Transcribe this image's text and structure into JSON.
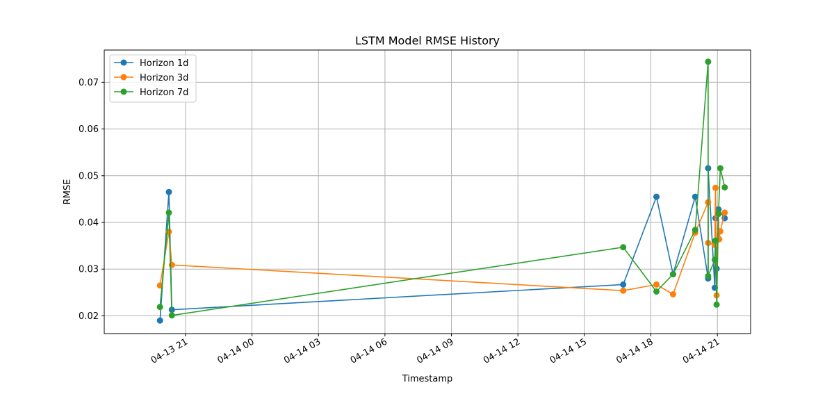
{
  "chart_data": {
    "type": "line",
    "title": "LSTM Model RMSE History",
    "xlabel": "Timestamp",
    "ylabel": "RMSE",
    "xlim": [
      "2025-04-13 17:20",
      "2025-04-14 22:30"
    ],
    "ylim": [
      0.0162,
      0.0769
    ],
    "grid": true,
    "legend": "top-left",
    "xticks": [
      {
        "t": "2025-04-13 21:00",
        "label": "04-13 21"
      },
      {
        "t": "2025-04-14 00:00",
        "label": "04-14 00"
      },
      {
        "t": "2025-04-14 03:00",
        "label": "04-14 03"
      },
      {
        "t": "2025-04-14 06:00",
        "label": "04-14 06"
      },
      {
        "t": "2025-04-14 09:00",
        "label": "04-14 09"
      },
      {
        "t": "2025-04-14 12:00",
        "label": "04-14 12"
      },
      {
        "t": "2025-04-14 15:00",
        "label": "04-14 15"
      },
      {
        "t": "2025-04-14 18:00",
        "label": "04-14 18"
      },
      {
        "t": "2025-04-14 21:00",
        "label": "04-14 21"
      }
    ],
    "yticks": [
      {
        "v": 0.02,
        "label": "0.02"
      },
      {
        "v": 0.03,
        "label": "0.03"
      },
      {
        "v": 0.04,
        "label": "0.04"
      },
      {
        "v": 0.05,
        "label": "0.05"
      },
      {
        "v": 0.06,
        "label": "0.06"
      },
      {
        "v": 0.07,
        "label": "0.07"
      }
    ],
    "series": [
      {
        "name": "Horizon 1d",
        "color": "#1f77b4",
        "points": [
          [
            "2025-04-13 19:51",
            0.019
          ],
          [
            "2025-04-13 20:15",
            0.0465
          ],
          [
            "2025-04-13 20:23",
            0.0213
          ],
          [
            "2025-04-14 16:45",
            0.0267
          ],
          [
            "2025-04-14 18:15",
            0.0455
          ],
          [
            "2025-04-14 19:00",
            0.0289
          ],
          [
            "2025-04-14 20:00",
            0.0455
          ],
          [
            "2025-04-14 20:35",
            0.028
          ],
          [
            "2025-04-14 20:35",
            0.0516
          ],
          [
            "2025-04-14 20:53",
            0.026
          ],
          [
            "2025-04-14 20:55",
            0.0409
          ],
          [
            "2025-04-14 20:58",
            0.0301
          ],
          [
            "2025-04-14 21:03",
            0.0428
          ],
          [
            "2025-04-14 21:20",
            0.0409
          ]
        ]
      },
      {
        "name": "Horizon 3d",
        "color": "#ff7f0e",
        "points": [
          [
            "2025-04-13 19:51",
            0.0265
          ],
          [
            "2025-04-13 20:15",
            0.038
          ],
          [
            "2025-04-13 20:23",
            0.0309
          ],
          [
            "2025-04-14 16:45",
            0.0254
          ],
          [
            "2025-04-14 18:15",
            0.0267
          ],
          [
            "2025-04-14 19:00",
            0.0246
          ],
          [
            "2025-04-14 20:00",
            0.0378
          ],
          [
            "2025-04-14 20:35",
            0.0443
          ],
          [
            "2025-04-14 20:35",
            0.0356
          ],
          [
            "2025-04-14 20:53",
            0.0352
          ],
          [
            "2025-04-14 20:55",
            0.0474
          ],
          [
            "2025-04-14 20:58",
            0.0244
          ],
          [
            "2025-04-14 21:03",
            0.0418
          ],
          [
            "2025-04-14 21:05",
            0.0364
          ],
          [
            "2025-04-14 21:08",
            0.0381
          ],
          [
            "2025-04-14 21:20",
            0.0421
          ]
        ]
      },
      {
        "name": "Horizon 7d",
        "color": "#2ca02c",
        "points": [
          [
            "2025-04-13 19:51",
            0.0219
          ],
          [
            "2025-04-13 20:15",
            0.0421
          ],
          [
            "2025-04-13 20:23",
            0.0201
          ],
          [
            "2025-04-14 16:45",
            0.0347
          ],
          [
            "2025-04-14 18:15",
            0.0252
          ],
          [
            "2025-04-14 19:00",
            0.0289
          ],
          [
            "2025-04-14 20:00",
            0.0384
          ],
          [
            "2025-04-14 20:35",
            0.0744
          ],
          [
            "2025-04-14 20:35",
            0.0285
          ],
          [
            "2025-04-14 20:53",
            0.032
          ],
          [
            "2025-04-14 20:55",
            0.0361
          ],
          [
            "2025-04-14 20:58",
            0.0224
          ],
          [
            "2025-04-14 21:03",
            0.0419
          ],
          [
            "2025-04-14 21:08",
            0.0516
          ],
          [
            "2025-04-14 21:20",
            0.0475
          ]
        ]
      }
    ]
  }
}
